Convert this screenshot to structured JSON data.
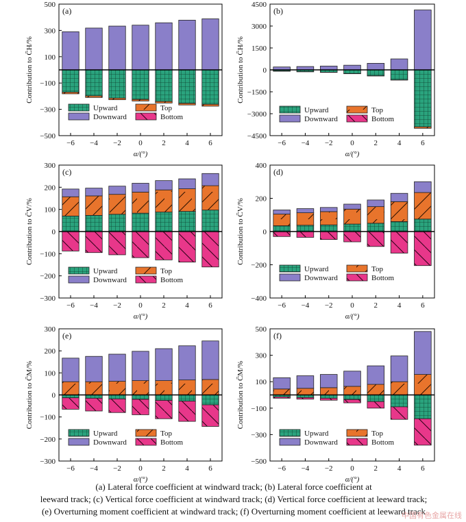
{
  "colors": {
    "upward": "#2aa37d",
    "downward": "#8a7fc9",
    "top": "#e8742c",
    "bottom": "#e8378a",
    "zero_line": "#000000"
  },
  "legend_labels": {
    "upward": "Upward",
    "downward": "Downward",
    "top": "Top",
    "bottom": "Bottom"
  },
  "xlabel": "α/(°)",
  "chart_data": [
    {
      "panel": "(a)",
      "type": "bar",
      "stacked": true,
      "ylabel": "Contribution to C̄H/%",
      "categories": [
        "−6",
        "−4",
        "−2",
        "0",
        "2",
        "4",
        "6"
      ],
      "yticks": [
        "500",
        "300",
        "100",
        "−100",
        "−300",
        "−500"
      ],
      "ylim": [
        -500,
        500
      ],
      "positive": {
        "downward": [
          290,
          318,
          333,
          340,
          358,
          378,
          388
        ],
        "upward": [
          0,
          0,
          0,
          0,
          0,
          0,
          0
        ],
        "top": [
          0,
          0,
          0,
          0,
          0,
          0,
          0
        ]
      },
      "negative": {
        "upward": [
          -170,
          -198,
          -215,
          -225,
          -240,
          -255,
          -262
        ],
        "top": [
          -12,
          -12,
          -12,
          -12,
          -12,
          -12,
          -14
        ],
        "bottom": [
          0,
          0,
          0,
          0,
          0,
          0,
          0
        ]
      }
    },
    {
      "panel": "(b)",
      "type": "bar",
      "stacked": true,
      "ylabel": "Contribution to C̄H/%",
      "categories": [
        "−6",
        "−4",
        "−2",
        "0",
        "2",
        "4",
        "6"
      ],
      "yticks": [
        "4500",
        "3000",
        "1500",
        "0",
        "−1500",
        "−3000",
        "−4500"
      ],
      "ylim": [
        -4500,
        4500
      ],
      "positive": {
        "downward": [
          200,
          230,
          260,
          320,
          450,
          750,
          4100
        ],
        "upward": [
          0,
          0,
          0,
          0,
          0,
          0,
          0
        ],
        "top": [
          0,
          0,
          0,
          0,
          0,
          0,
          0
        ]
      },
      "negative": {
        "upward": [
          -80,
          -120,
          -160,
          -250,
          -400,
          -680,
          -3900
        ],
        "top": [
          -15,
          -15,
          -15,
          -15,
          -20,
          -20,
          -100
        ],
        "bottom": [
          0,
          0,
          0,
          0,
          0,
          0,
          0
        ]
      }
    },
    {
      "panel": "(c)",
      "type": "bar",
      "stacked": true,
      "ylabel": "Contribution to C̄V/%",
      "categories": [
        "−6",
        "−4",
        "−2",
        "0",
        "2",
        "4",
        "6"
      ],
      "yticks": [
        "300",
        "200",
        "100",
        "0",
        "−100",
        "−200",
        "−300"
      ],
      "ylim": [
        -300,
        300
      ],
      "positive": {
        "upward": [
          70,
          73,
          78,
          83,
          88,
          91,
          97
        ],
        "top": [
          87,
          88,
          90,
          95,
          100,
          102,
          110
        ],
        "downward": [
          35,
          35,
          37,
          40,
          42,
          45,
          55
        ]
      },
      "negative": {
        "upward": [
          0,
          0,
          0,
          0,
          0,
          0,
          0
        ],
        "top": [
          0,
          0,
          0,
          0,
          0,
          0,
          0
        ],
        "bottom": [
          -88,
          -95,
          -105,
          -118,
          -128,
          -138,
          -160
        ]
      }
    },
    {
      "panel": "(d)",
      "type": "bar",
      "stacked": true,
      "ylabel": "Contribution to C̄V/%",
      "categories": [
        "−6",
        "−4",
        "−2",
        "0",
        "2",
        "4",
        "6"
      ],
      "yticks": [
        "400",
        "200",
        "0",
        "−200",
        "−400"
      ],
      "ylim": [
        -400,
        400
      ],
      "positive": {
        "upward": [
          35,
          38,
          40,
          45,
          50,
          60,
          75
        ],
        "top": [
          70,
          75,
          80,
          90,
          100,
          120,
          160
        ],
        "downward": [
          25,
          25,
          25,
          30,
          40,
          50,
          65
        ]
      },
      "negative": {
        "upward": [
          0,
          0,
          0,
          0,
          0,
          0,
          0
        ],
        "top": [
          0,
          0,
          0,
          0,
          0,
          0,
          0
        ],
        "bottom": [
          -30,
          -35,
          -48,
          -62,
          -90,
          -130,
          -205
        ]
      }
    },
    {
      "panel": "(e)",
      "type": "bar",
      "stacked": true,
      "ylabel": "Contribution to C̄M/%",
      "categories": [
        "−6",
        "−4",
        "−2",
        "0",
        "2",
        "4",
        "6"
      ],
      "yticks": [
        "300",
        "200",
        "100",
        "0",
        "−100",
        "−200",
        "−300"
      ],
      "ylim": [
        -300,
        300
      ],
      "positive": {
        "upward": [
          0,
          0,
          0,
          0,
          0,
          0,
          0
        ],
        "top": [
          60,
          60,
          62,
          65,
          65,
          68,
          70
        ],
        "downward": [
          107,
          115,
          123,
          133,
          145,
          155,
          175
        ]
      },
      "negative": {
        "upward": [
          -13,
          -15,
          -18,
          -20,
          -25,
          -28,
          -45
        ],
        "top": [
          0,
          0,
          0,
          0,
          0,
          0,
          0
        ],
        "bottom": [
          -52,
          -58,
          -62,
          -70,
          -83,
          -92,
          -98
        ]
      }
    },
    {
      "panel": "(f)",
      "type": "bar",
      "stacked": true,
      "ylabel": "Contribution to C̄M/%",
      "categories": [
        "−6",
        "−4",
        "−2",
        "0",
        "2",
        "4",
        "6"
      ],
      "yticks": [
        "500",
        "300",
        "100",
        "−100",
        "−300",
        "−500"
      ],
      "ylim": [
        -500,
        500
      ],
      "positive": {
        "upward": [
          0,
          0,
          0,
          0,
          0,
          0,
          0
        ],
        "top": [
          45,
          50,
          55,
          65,
          80,
          100,
          155
        ],
        "downward": [
          85,
          95,
          100,
          115,
          140,
          195,
          325
        ]
      },
      "negative": {
        "upward": [
          -15,
          -20,
          -25,
          -35,
          -50,
          -90,
          -180
        ],
        "top": [
          0,
          0,
          0,
          0,
          0,
          0,
          0
        ],
        "bottom": [
          -10,
          -12,
          -15,
          -25,
          -50,
          -95,
          -200
        ]
      }
    }
  ],
  "caption": {
    "line1": "(a) Lateral force coefficient at windward track; (b) Lateral force coefficient at",
    "line2": "leeward track; (c) Vertical force coefficient at windward track; (d) Vertical force coefficient at leeward track;",
    "line3": "(e) Overturning moment coefficient at windward track; (f) Overturning moment coefficient at leeward track"
  },
  "watermark": "中国有色金属在线"
}
